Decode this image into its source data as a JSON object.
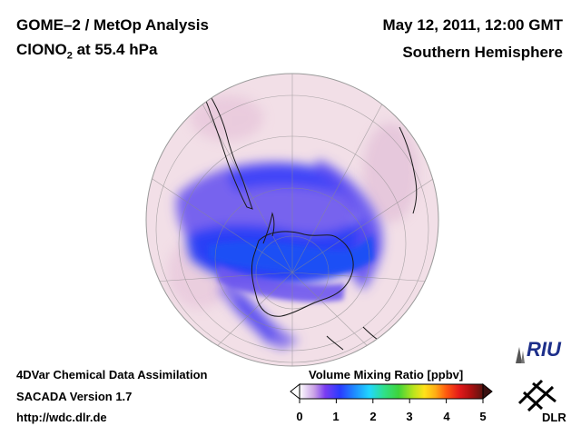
{
  "header": {
    "title_line1": "GOME–2 / MetOp Analysis",
    "title_line2_main": "ClONO",
    "title_line2_sub": "2",
    "title_line2_rest": " at 55.4 hPa",
    "datetime": "May 12, 2011, 12:00 GMT",
    "region": "Southern Hemisphere"
  },
  "footer": {
    "line1": "4DVar Chemical Data Assimilation",
    "line2": "SACADA Version 1.7",
    "line3": "http://wdc.dlr.de"
  },
  "colorbar": {
    "title": "Volume Mixing Ratio [ppbv]",
    "ticks": [
      "0",
      "1",
      "2",
      "3",
      "4",
      "5"
    ],
    "colors": [
      "#ffffff",
      "#c9a0e6",
      "#8a3cf0",
      "#2a3bff",
      "#1f8cff",
      "#21d6ff",
      "#2fe08a",
      "#3fd43a",
      "#b8e41c",
      "#ffe21a",
      "#ffae14",
      "#ff5a10",
      "#e31a1a",
      "#b01010",
      "#5a1410"
    ]
  },
  "logos": {
    "riu": "RIU",
    "dlr": "DLR"
  },
  "map": {
    "background_color": "#f1dde6",
    "low_value_color": "#2d3ff5"
  }
}
